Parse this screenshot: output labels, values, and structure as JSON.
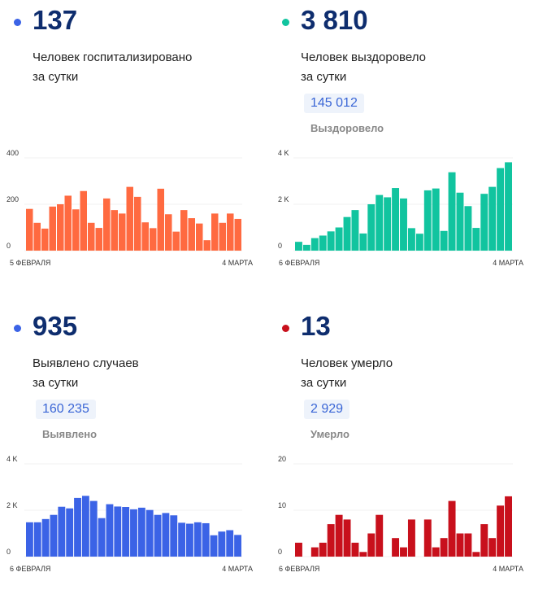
{
  "cards": [
    {
      "number": "137",
      "label_line1": "Человек госпитализировано",
      "label_line2": "за сутки",
      "badge": null,
      "badge_label": null,
      "dot_color": "#3b63e6"
    },
    {
      "number": "3 810",
      "label_line1": "Человек выздоровело",
      "label_line2": "за сутки",
      "badge": "145 012",
      "badge_label": "Выздоровело",
      "dot_color": "#11c49f"
    },
    {
      "number": "935",
      "label_line1": "Выявлено случаев",
      "label_line2": "за сутки",
      "badge": "160 235",
      "badge_label": "Выявлено",
      "dot_color": "#3b63e6"
    },
    {
      "number": "13",
      "label_line1": "Человек умерло",
      "label_line2": "за сутки",
      "badge": "2 929",
      "badge_label": "Умерло",
      "dot_color": "#c8101c"
    }
  ],
  "chart_data": [
    {
      "type": "bar",
      "title": "Госпитализировано",
      "color": "#ff6a40",
      "ylim": [
        0,
        400
      ],
      "yticks": [
        "0",
        "200",
        "400"
      ],
      "x_start": "5 ФЕВРАЛЯ",
      "x_end": "4 МАРТА",
      "values": [
        180,
        120,
        95,
        190,
        200,
        237,
        178,
        257,
        120,
        98,
        225,
        175,
        160,
        275,
        232,
        122,
        97,
        267,
        157,
        82,
        175,
        140,
        117,
        45,
        160,
        120,
        160,
        137
      ]
    },
    {
      "type": "bar",
      "title": "Выздоровело",
      "color": "#11c49f",
      "ylim": [
        0,
        4000
      ],
      "yticks": [
        "0",
        "2 K",
        "4 K"
      ],
      "x_start": "6 ФЕВРАЛЯ",
      "x_end": "4 МАРТА",
      "values": [
        380,
        250,
        540,
        650,
        830,
        1000,
        1450,
        1750,
        740,
        2000,
        2400,
        2300,
        2700,
        2250,
        970,
        730,
        2600,
        2680,
        850,
        3380,
        2500,
        1920,
        980,
        2450,
        2750,
        3560,
        3810
      ]
    },
    {
      "type": "bar",
      "title": "Выявлено",
      "color": "#3b63e6",
      "ylim": [
        0,
        4000
      ],
      "yticks": [
        "0",
        "2 K",
        "4 K"
      ],
      "x_start": "6 ФЕВРАЛЯ",
      "x_end": "4 МАРТА",
      "values": [
        1480,
        1480,
        1620,
        1800,
        2150,
        2080,
        2530,
        2620,
        2400,
        1660,
        2260,
        2160,
        2140,
        2040,
        2110,
        2010,
        1800,
        1880,
        1780,
        1460,
        1420,
        1480,
        1440,
        920,
        1080,
        1140,
        935
      ]
    },
    {
      "type": "bar",
      "title": "Умерло",
      "color": "#c8101c",
      "ylim": [
        0,
        20
      ],
      "yticks": [
        "0",
        "10",
        "20"
      ],
      "x_start": "6 ФЕВРАЛЯ",
      "x_end": "4 МАРТА",
      "values": [
        3,
        0,
        2,
        3,
        7,
        9,
        8,
        3,
        1,
        5,
        9,
        0,
        4,
        2,
        8,
        0,
        8,
        2,
        4,
        12,
        5,
        5,
        1,
        7,
        4,
        11,
        13
      ]
    }
  ]
}
